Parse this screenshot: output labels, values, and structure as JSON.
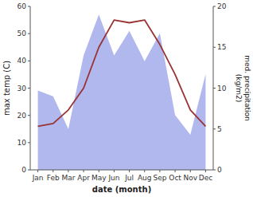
{
  "chart_data": {
    "type": "line",
    "x_label": "date (month)",
    "y_label": "max temp (C)",
    "y2_label": "med. precipitation\n(kg/m2)",
    "categories": [
      "Jan",
      "Feb",
      "Mar",
      "Apr",
      "May",
      "Jun",
      "Jul",
      "Aug",
      "Sep",
      "Oct",
      "Nov",
      "Dec"
    ],
    "series": [
      {
        "type": "area",
        "axis": "y2",
        "color": "#b0b8ee",
        "values": [
          9.7,
          9.0,
          5.0,
          14.0,
          19.0,
          14.0,
          17.0,
          13.3,
          16.7,
          6.7,
          4.3,
          11.7
        ]
      },
      {
        "type": "line",
        "color": "#993333",
        "values": [
          16,
          17,
          22,
          30,
          45,
          55,
          54,
          55,
          46,
          35,
          22,
          16
        ]
      }
    ],
    "ylim": [
      0,
      60
    ],
    "yticks": [
      0,
      10,
      20,
      30,
      40,
      50,
      60
    ],
    "y2lim": [
      0,
      20
    ],
    "y2ticks": [
      0,
      5,
      10,
      15,
      20
    ],
    "grid": false
  }
}
